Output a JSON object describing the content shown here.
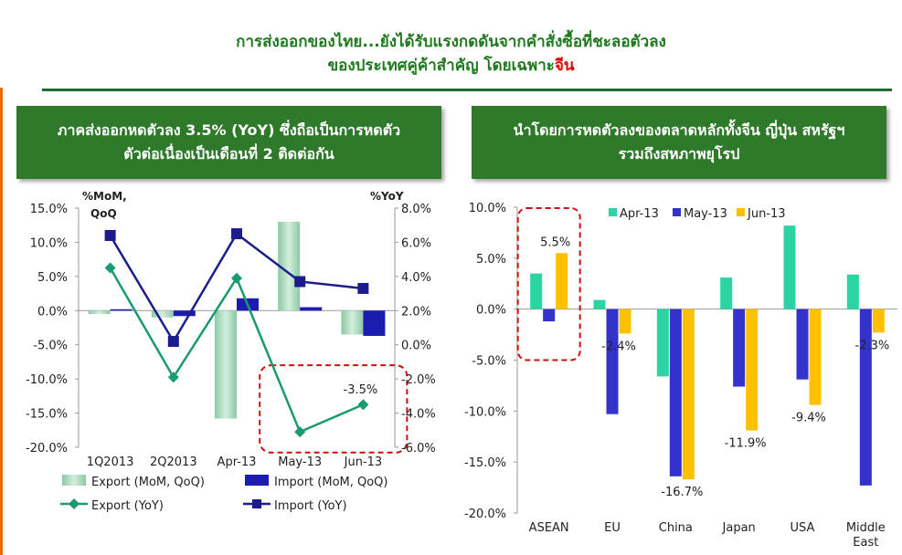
{
  "title": {
    "line1": "การส่งออกของไทย...ยังได้รับแรงกดดันจากคำสั่งซื้อที่ชะลอตัวลง",
    "line2_prefix": "ของประเทศคู่ค้าสำคัญ โดยเฉพาะ",
    "line2_highlight": "จีน"
  },
  "colors": {
    "accent": "#e46c0a",
    "panel_green": "#2f7a2a",
    "title_green": "#1f7a1f",
    "highlight_red": "#e00000",
    "dashed_box": "#cc1111",
    "export_bar": "#a8d8b9",
    "import_bar": "#1c1cb0",
    "export_line": "#1a9a72",
    "import_line": "#1c1c8c",
    "apr": "#2bd4a2",
    "may": "#3333cc",
    "jun": "#ffc000"
  },
  "left_panel": {
    "heading_line1": "ภาคส่งออกหดตัวลง 3.5% (YoY) ซึ่งถือเป็นการหดตัว",
    "heading_line2": "ตัวต่อเนื่องเป็นเดือนที่ 2 ติดต่อกัน"
  },
  "right_panel": {
    "heading_line1": "นำโดยการหดตัวลงของตลาดหลักทั้งจีน ญี่ปุ่น สหรัฐฯ",
    "heading_line2": "รวมถึงสหภาพยุโรป"
  },
  "chart_data": [
    {
      "type": "bar",
      "categories": [
        "1Q2013",
        "2Q2013",
        "Apr-13",
        "May-13",
        "Jun-13"
      ],
      "y_left_label": "%MoM, QoQ",
      "y_right_label": "%YoY",
      "y_left_ticks": [
        "15.0%",
        "10.0%",
        "5.0%",
        "0.0%",
        "-5.0%",
        "-10.0%",
        "-15.0%",
        "-20.0%"
      ],
      "y_right_ticks": [
        "8.0%",
        "6.0%",
        "4.0%",
        "2.0%",
        "0.0%",
        "-2.0%",
        "-4.0%",
        "-6.0%"
      ],
      "ylim_left": [
        -20,
        15
      ],
      "ylim_right": [
        -6,
        8
      ],
      "series": [
        {
          "name": "Export (MoM, QoQ)",
          "kind": "bar",
          "axis": "left",
          "values": [
            -0.5,
            -1.0,
            -15.8,
            13.0,
            -3.5
          ]
        },
        {
          "name": "Import (MoM, QoQ)",
          "kind": "bar",
          "axis": "left",
          "values": [
            0.2,
            -0.8,
            1.8,
            0.5,
            -3.7
          ]
        },
        {
          "name": "Export (YoY)",
          "kind": "line",
          "marker": "diamond",
          "axis": "right",
          "values": [
            4.5,
            -1.9,
            3.9,
            -5.1,
            -3.5
          ]
        },
        {
          "name": "Import (YoY)",
          "kind": "line",
          "marker": "square",
          "axis": "right",
          "values": [
            6.4,
            0.2,
            6.5,
            3.7,
            3.3
          ]
        }
      ],
      "annotations": [
        "-3.5%"
      ],
      "grid": false
    },
    {
      "type": "bar",
      "categories": [
        "ASEAN",
        "EU",
        "China",
        "Japan",
        "USA",
        "Middle East"
      ],
      "y_ticks": [
        "10.0%",
        "5.0%",
        "0.0%",
        "-5.0%",
        "-10.0%",
        "-15.0%",
        "-20.0%"
      ],
      "ylim": [
        -20,
        10
      ],
      "legend_position": "top",
      "series": [
        {
          "name": "Apr-13",
          "values": [
            3.5,
            0.9,
            -6.6,
            3.1,
            8.2,
            3.4
          ]
        },
        {
          "name": "May-13",
          "values": [
            -1.2,
            -10.3,
            -16.4,
            -7.6,
            -6.9,
            -17.3
          ]
        },
        {
          "name": "Jun-13",
          "values": [
            5.5,
            -2.4,
            -16.7,
            -11.9,
            -9.4,
            -2.3
          ]
        }
      ],
      "data_labels": [
        "5.5%",
        "-2.4%",
        "-16.7%",
        "-11.9%",
        "-9.4%",
        "-2.3%"
      ],
      "grid": false
    }
  ]
}
